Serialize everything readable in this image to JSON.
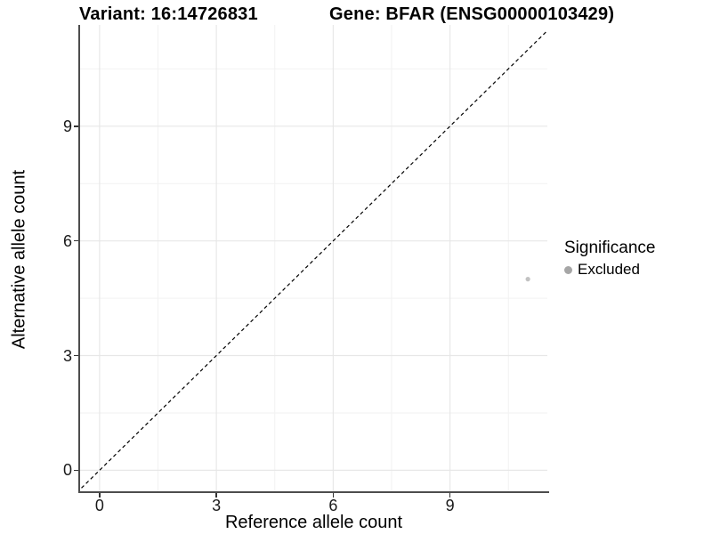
{
  "titles": {
    "variant": "Variant: 16:14726831",
    "gene": "Gene: BFAR (ENSG00000103429)"
  },
  "axes": {
    "x_title": "Reference allele count",
    "y_title": "Alternative allele count"
  },
  "legend": {
    "title": "Significance",
    "items": [
      {
        "label": "Excluded",
        "color": "#a6a6a6"
      }
    ]
  },
  "chart_data": {
    "type": "scatter",
    "title_left": "Variant: 16:14726831",
    "title_right": "Gene: BFAR (ENSG00000103429)",
    "xlabel": "Reference allele count",
    "ylabel": "Alternative allele count",
    "xlim": [
      -0.5,
      11.5
    ],
    "ylim": [
      -0.55,
      11.65
    ],
    "x_ticks": [
      0,
      3,
      6,
      9
    ],
    "y_ticks": [
      0,
      3,
      6,
      9
    ],
    "x_minor_gridlines": [
      1.5,
      4.5,
      7.5,
      10.5
    ],
    "y_minor_gridlines": [
      1.5,
      4.5,
      7.5,
      10.5
    ],
    "grid": true,
    "legend_position": "right",
    "series": [
      {
        "name": "Excluded",
        "color": "#c2c2c2",
        "point_radius": 2.6,
        "points": [
          {
            "x": 11,
            "y": 5
          }
        ]
      }
    ],
    "reference_line": {
      "type": "identity",
      "equation": "y = x",
      "style": "dashed",
      "color": "#000000"
    },
    "style_colors": {
      "major_gridline": "#e7e7e7",
      "minor_gridline": "#f2f2f2",
      "axis_line": "#4d4d4d",
      "tick_label": "#1a1a1a",
      "point_excluded": "#c2c2c2"
    }
  }
}
